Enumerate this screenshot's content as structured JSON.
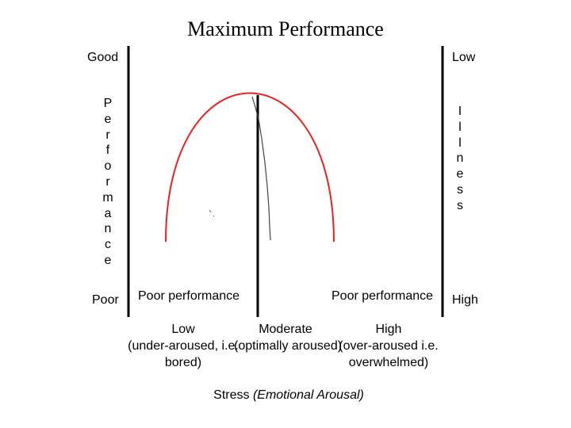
{
  "title": "Maximum Performance",
  "left_axis": {
    "top_label": "Good",
    "bottom_label": "Poor",
    "vertical_label": "Performance"
  },
  "right_axis": {
    "top_label": "Low",
    "bottom_label": "High",
    "vertical_label": "Illness"
  },
  "curve_labels": {
    "left": "Poor performance",
    "right": "Poor performance"
  },
  "x_categories": [
    {
      "level": "Low",
      "line1": "(under-aroused, i.e.",
      "line2": "bored)"
    },
    {
      "level": "Moderate",
      "line1": "(optimally aroused)",
      "line2": ""
    },
    {
      "level": "High",
      "line1": "(over-aroused i.e.",
      "line2": "overwhelmed)"
    }
  ],
  "x_axis_title": {
    "main": "Stress ",
    "emphasis": "(Emotional Arousal)"
  },
  "colors": {
    "curve": "#e8231f",
    "axes": "#000000",
    "text": "#000000"
  }
}
